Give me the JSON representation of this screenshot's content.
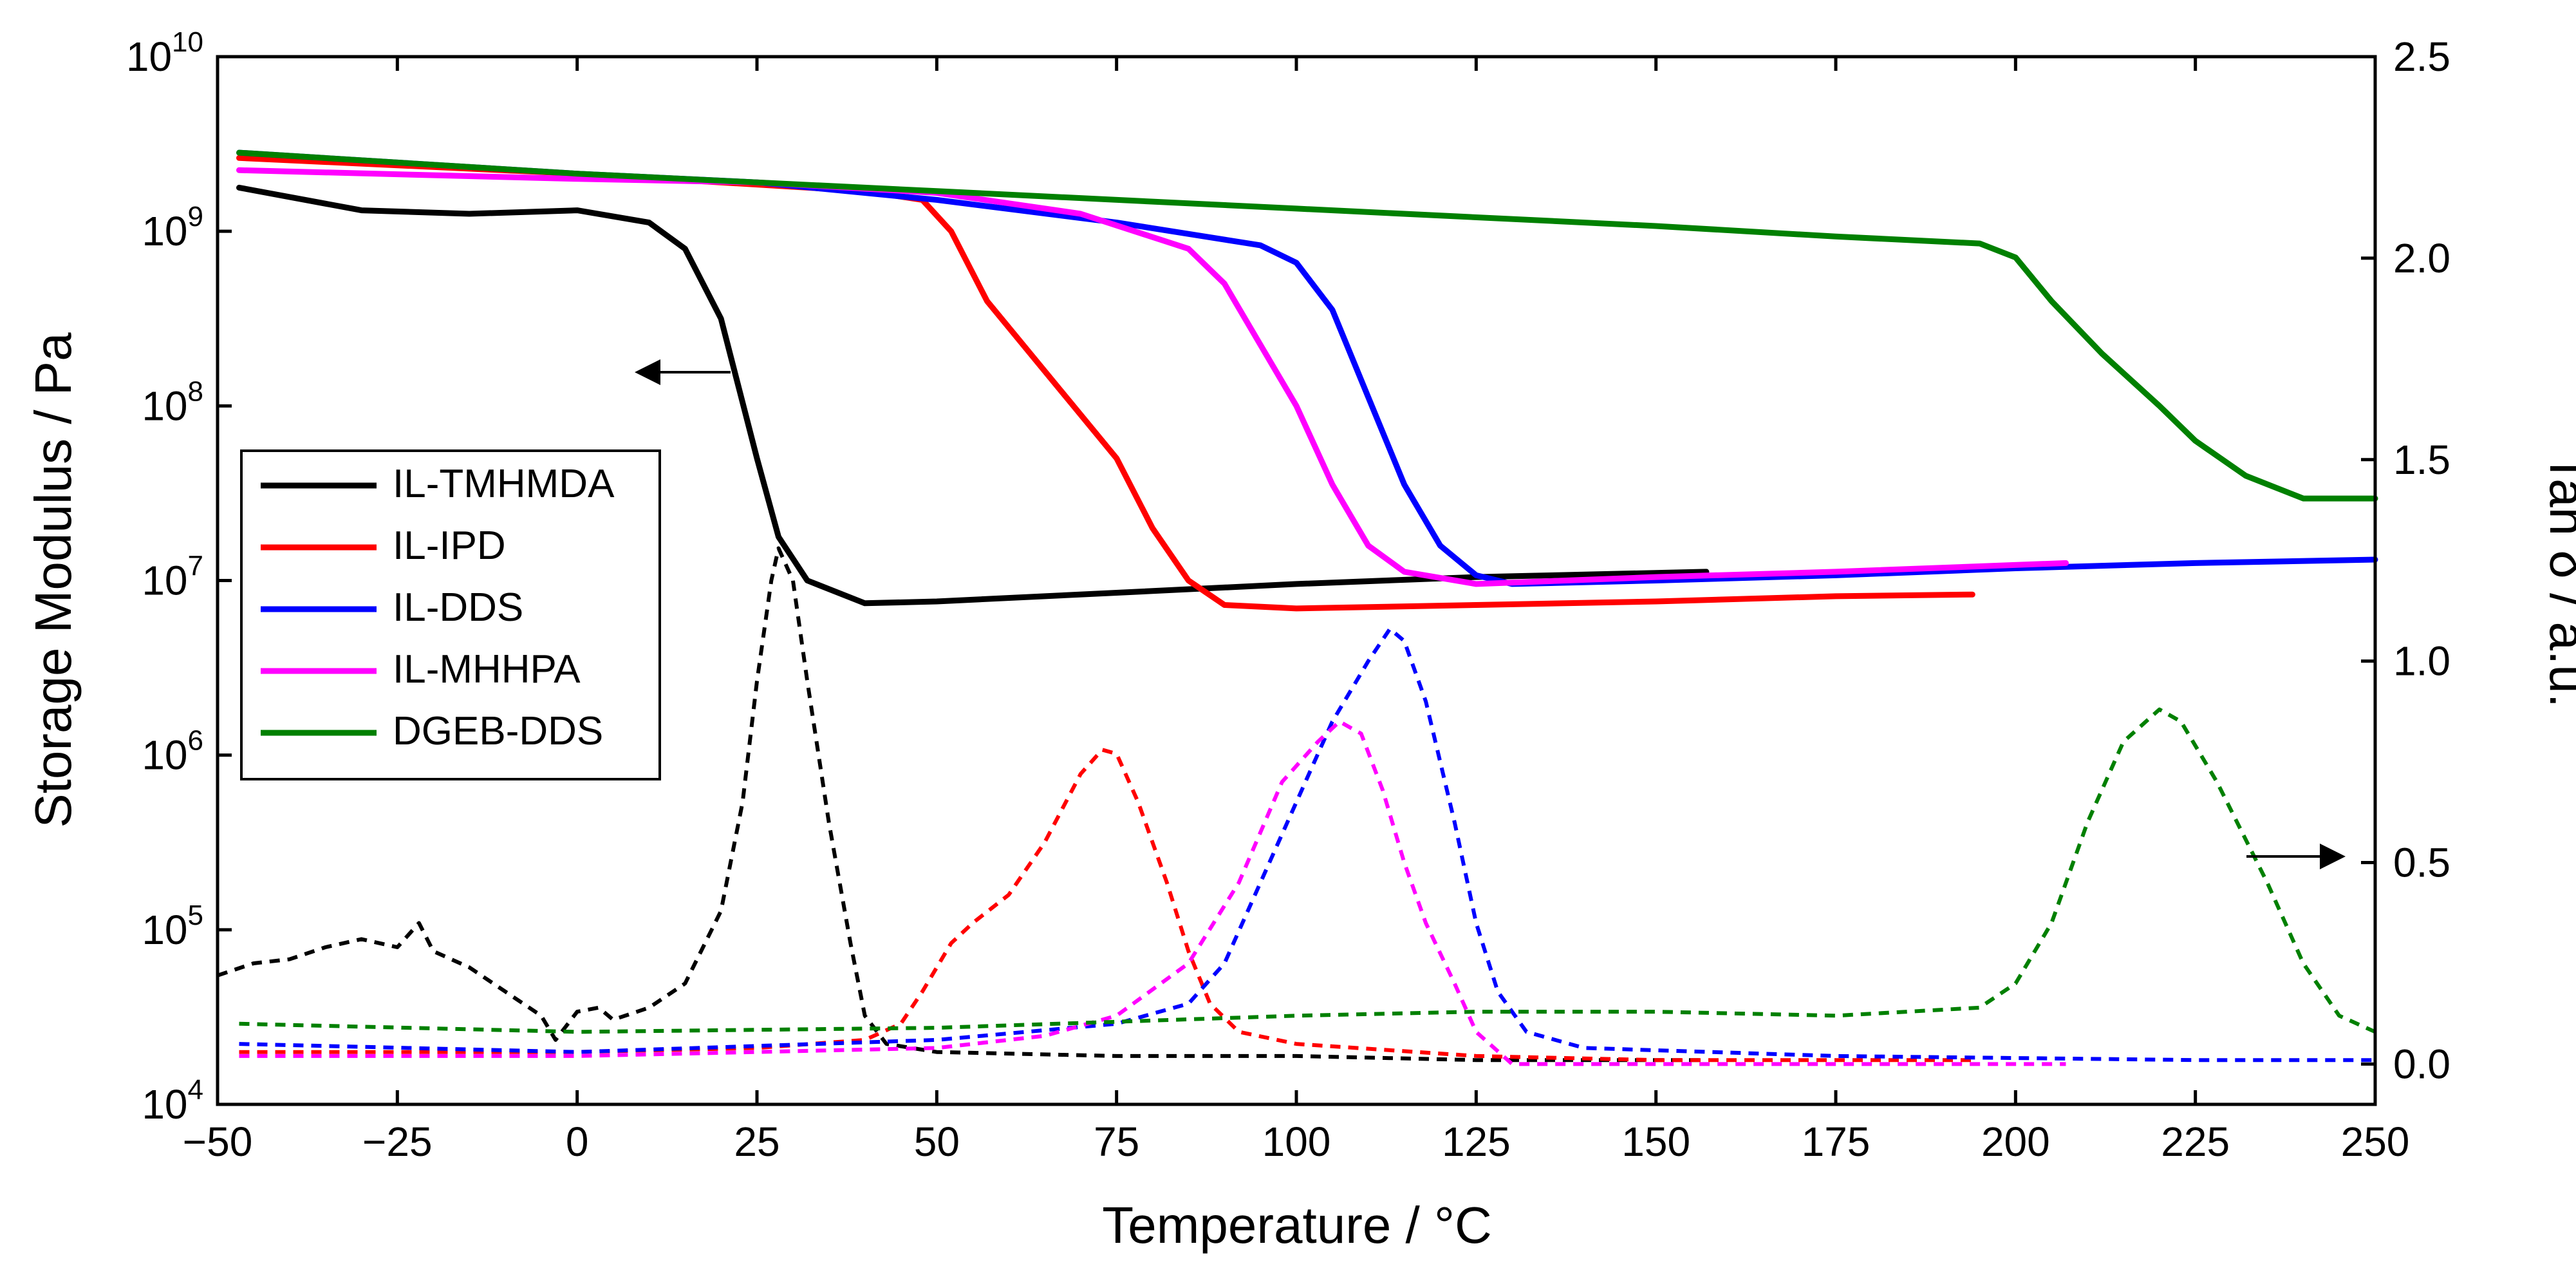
{
  "chart_data": {
    "type": "line",
    "xlabel": "Temperature / °C",
    "ylabel_left": "Storage Modulus / Pa",
    "ylabel_right": "Tan δ / a.u.",
    "xlim": [
      -50,
      250
    ],
    "ylim_left_log10": [
      4,
      10
    ],
    "ylim_right": [
      -0.1,
      2.5
    ],
    "x_ticks": [
      -50,
      -25,
      0,
      25,
      50,
      75,
      100,
      125,
      150,
      175,
      200,
      225,
      250
    ],
    "y_left_ticks": [
      {
        "base": "10",
        "exp": "4"
      },
      {
        "base": "10",
        "exp": "5"
      },
      {
        "base": "10",
        "exp": "6"
      },
      {
        "base": "10",
        "exp": "7"
      },
      {
        "base": "10",
        "exp": "8"
      },
      {
        "base": "10",
        "exp": "9"
      },
      {
        "base": "10",
        "exp": "10"
      }
    ],
    "y_right_ticks": [
      "0.0",
      "0.5",
      "1.0",
      "1.5",
      "2.0",
      "2.5"
    ],
    "legend": [
      {
        "name": "IL-TMHMDA",
        "color": "#000000"
      },
      {
        "name": "IL-IPD",
        "color": "#ff0000"
      },
      {
        "name": "IL-DDS",
        "color": "#0000ff"
      },
      {
        "name": "IL-MHHPA",
        "color": "#ff00ff"
      },
      {
        "name": "DGEB-DDS",
        "color": "#008000"
      }
    ],
    "storage_modulus_log10": [
      {
        "name": "IL-TMHMDA",
        "color": "#000000",
        "points": [
          [
            -47,
            9.25
          ],
          [
            -30,
            9.12
          ],
          [
            -15,
            9.1
          ],
          [
            0,
            9.12
          ],
          [
            10,
            9.05
          ],
          [
            15,
            8.9
          ],
          [
            20,
            8.5
          ],
          [
            25,
            7.7
          ],
          [
            28,
            7.25
          ],
          [
            32,
            7.0
          ],
          [
            40,
            6.87
          ],
          [
            50,
            6.88
          ],
          [
            75,
            6.93
          ],
          [
            100,
            6.98
          ],
          [
            125,
            7.02
          ],
          [
            157,
            7.05
          ]
        ]
      },
      {
        "name": "IL-IPD",
        "color": "#ff0000",
        "points": [
          [
            -47,
            9.42
          ],
          [
            0,
            9.33
          ],
          [
            40,
            9.23
          ],
          [
            48,
            9.18
          ],
          [
            52,
            9.0
          ],
          [
            57,
            8.6
          ],
          [
            65,
            8.2
          ],
          [
            75,
            7.7
          ],
          [
            80,
            7.3
          ],
          [
            85,
            7.0
          ],
          [
            90,
            6.86
          ],
          [
            100,
            6.84
          ],
          [
            125,
            6.86
          ],
          [
            150,
            6.88
          ],
          [
            175,
            6.91
          ],
          [
            194,
            6.92
          ]
        ]
      },
      {
        "name": "IL-DDS",
        "color": "#0000ff",
        "points": [
          [
            -47,
            9.45
          ],
          [
            0,
            9.33
          ],
          [
            25,
            9.28
          ],
          [
            50,
            9.18
          ],
          [
            75,
            9.05
          ],
          [
            95,
            8.92
          ],
          [
            100,
            8.82
          ],
          [
            105,
            8.55
          ],
          [
            110,
            8.05
          ],
          [
            115,
            7.55
          ],
          [
            120,
            7.2
          ],
          [
            125,
            7.03
          ],
          [
            130,
            6.98
          ],
          [
            150,
            7.0
          ],
          [
            175,
            7.03
          ],
          [
            200,
            7.07
          ],
          [
            225,
            7.1
          ],
          [
            250,
            7.12
          ]
        ]
      },
      {
        "name": "IL-MHHPA",
        "color": "#ff00ff",
        "points": [
          [
            -47,
            9.35
          ],
          [
            0,
            9.3
          ],
          [
            25,
            9.28
          ],
          [
            50,
            9.22
          ],
          [
            70,
            9.1
          ],
          [
            85,
            8.9
          ],
          [
            90,
            8.7
          ],
          [
            95,
            8.35
          ],
          [
            100,
            8.0
          ],
          [
            105,
            7.55
          ],
          [
            110,
            7.2
          ],
          [
            115,
            7.05
          ],
          [
            125,
            6.98
          ],
          [
            150,
            7.02
          ],
          [
            175,
            7.05
          ],
          [
            207,
            7.1
          ]
        ]
      },
      {
        "name": "DGEB-DDS",
        "color": "#008000",
        "points": [
          [
            -47,
            9.45
          ],
          [
            0,
            9.33
          ],
          [
            50,
            9.23
          ],
          [
            100,
            9.13
          ],
          [
            150,
            9.03
          ],
          [
            175,
            8.97
          ],
          [
            195,
            8.93
          ],
          [
            200,
            8.85
          ],
          [
            205,
            8.6
          ],
          [
            212,
            8.3
          ],
          [
            220,
            8.0
          ],
          [
            225,
            7.8
          ],
          [
            232,
            7.6
          ],
          [
            240,
            7.47
          ],
          [
            250,
            7.47
          ]
        ]
      }
    ],
    "tan_delta": [
      {
        "name": "IL-TMHMDA",
        "color": "#000000",
        "points": [
          [
            -50,
            0.22
          ],
          [
            -45,
            0.25
          ],
          [
            -40,
            0.26
          ],
          [
            -35,
            0.29
          ],
          [
            -30,
            0.31
          ],
          [
            -25,
            0.29
          ],
          [
            -22,
            0.35
          ],
          [
            -20,
            0.28
          ],
          [
            -15,
            0.24
          ],
          [
            -10,
            0.18
          ],
          [
            -5,
            0.12
          ],
          [
            -3,
            0.06
          ],
          [
            0,
            0.13
          ],
          [
            3,
            0.14
          ],
          [
            5,
            0.11
          ],
          [
            10,
            0.14
          ],
          [
            15,
            0.2
          ],
          [
            20,
            0.38
          ],
          [
            23,
            0.65
          ],
          [
            25,
            0.95
          ],
          [
            27,
            1.2
          ],
          [
            28,
            1.28
          ],
          [
            30,
            1.2
          ],
          [
            32,
            0.95
          ],
          [
            35,
            0.6
          ],
          [
            38,
            0.3
          ],
          [
            40,
            0.12
          ],
          [
            43,
            0.05
          ],
          [
            50,
            0.03
          ],
          [
            75,
            0.02
          ],
          [
            100,
            0.02
          ],
          [
            125,
            0.01
          ],
          [
            157,
            0.01
          ]
        ]
      },
      {
        "name": "IL-IPD",
        "color": "#ff0000",
        "points": [
          [
            -47,
            0.03
          ],
          [
            0,
            0.03
          ],
          [
            25,
            0.04
          ],
          [
            40,
            0.06
          ],
          [
            45,
            0.1
          ],
          [
            48,
            0.18
          ],
          [
            52,
            0.3
          ],
          [
            55,
            0.35
          ],
          [
            60,
            0.42
          ],
          [
            65,
            0.55
          ],
          [
            70,
            0.72
          ],
          [
            73,
            0.78
          ],
          [
            75,
            0.77
          ],
          [
            78,
            0.65
          ],
          [
            82,
            0.45
          ],
          [
            85,
            0.28
          ],
          [
            88,
            0.15
          ],
          [
            92,
            0.08
          ],
          [
            100,
            0.05
          ],
          [
            125,
            0.02
          ],
          [
            150,
            0.01
          ],
          [
            194,
            0.01
          ]
        ]
      },
      {
        "name": "IL-DDS",
        "color": "#0000ff",
        "points": [
          [
            -47,
            0.05
          ],
          [
            0,
            0.03
          ],
          [
            50,
            0.06
          ],
          [
            75,
            0.1
          ],
          [
            85,
            0.15
          ],
          [
            90,
            0.25
          ],
          [
            95,
            0.45
          ],
          [
            100,
            0.65
          ],
          [
            105,
            0.85
          ],
          [
            110,
            1.0
          ],
          [
            113,
            1.08
          ],
          [
            115,
            1.05
          ],
          [
            118,
            0.9
          ],
          [
            122,
            0.6
          ],
          [
            125,
            0.35
          ],
          [
            128,
            0.18
          ],
          [
            132,
            0.08
          ],
          [
            140,
            0.04
          ],
          [
            175,
            0.02
          ],
          [
            225,
            0.01
          ],
          [
            250,
            0.01
          ]
        ]
      },
      {
        "name": "IL-MHHPA",
        "color": "#ff00ff",
        "points": [
          [
            -47,
            0.02
          ],
          [
            0,
            0.02
          ],
          [
            50,
            0.04
          ],
          [
            65,
            0.07
          ],
          [
            75,
            0.12
          ],
          [
            85,
            0.25
          ],
          [
            92,
            0.45
          ],
          [
            98,
            0.7
          ],
          [
            103,
            0.8
          ],
          [
            106,
            0.85
          ],
          [
            109,
            0.82
          ],
          [
            112,
            0.68
          ],
          [
            115,
            0.5
          ],
          [
            118,
            0.35
          ],
          [
            122,
            0.2
          ],
          [
            125,
            0.08
          ],
          [
            130,
            0.0
          ],
          [
            150,
            0.0
          ],
          [
            175,
            0.0
          ],
          [
            207,
            0.0
          ]
        ]
      },
      {
        "name": "DGEB-DDS",
        "color": "#008000",
        "points": [
          [
            -47,
            0.1
          ],
          [
            0,
            0.08
          ],
          [
            50,
            0.09
          ],
          [
            100,
            0.12
          ],
          [
            125,
            0.13
          ],
          [
            150,
            0.13
          ],
          [
            175,
            0.12
          ],
          [
            195,
            0.14
          ],
          [
            200,
            0.2
          ],
          [
            205,
            0.35
          ],
          [
            210,
            0.6
          ],
          [
            215,
            0.8
          ],
          [
            220,
            0.88
          ],
          [
            223,
            0.85
          ],
          [
            228,
            0.7
          ],
          [
            235,
            0.45
          ],
          [
            240,
            0.25
          ],
          [
            245,
            0.12
          ],
          [
            250,
            0.08
          ]
        ]
      }
    ],
    "annotations": [
      {
        "type": "arrow",
        "direction": "left",
        "note": "points to left axis"
      },
      {
        "type": "arrow",
        "direction": "right",
        "note": "points to right axis"
      }
    ]
  }
}
